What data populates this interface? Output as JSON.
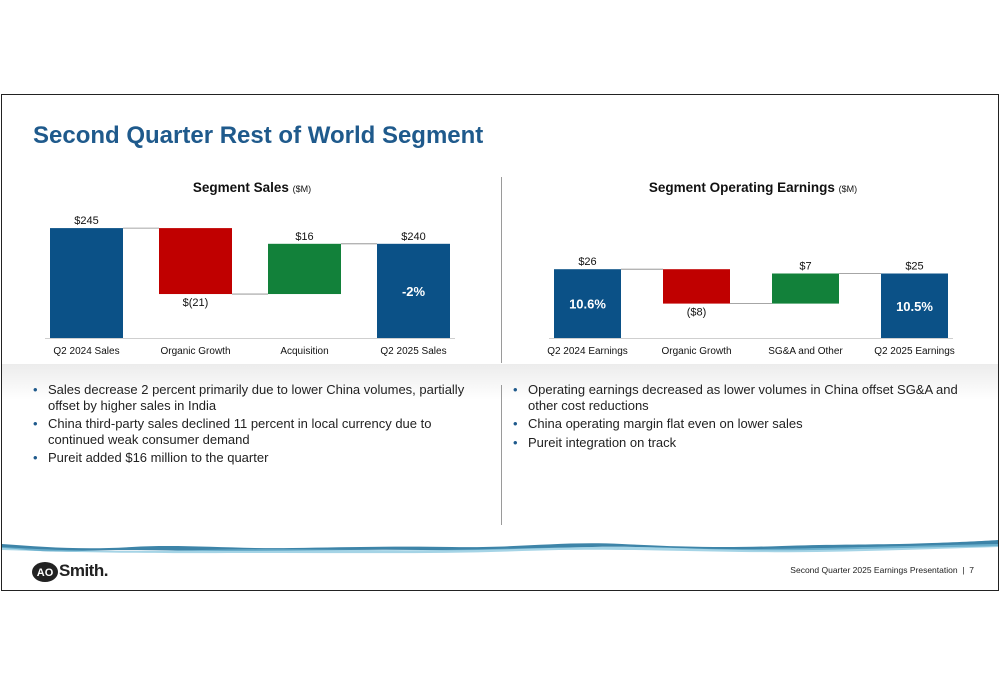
{
  "title": "Second Quarter Rest of World Segment",
  "colors": {
    "blue": "#0b5187",
    "red": "#c00000",
    "green": "#12813a",
    "title": "#1f5a8c"
  },
  "left_chart": {
    "heading": "Segment Sales",
    "unit": "($M)"
  },
  "right_chart": {
    "heading": "Segment Operating Earnings",
    "unit": "($M)"
  },
  "chart_data": [
    {
      "type": "bar",
      "subtype": "waterfall",
      "title": "Segment Sales ($M)",
      "categories": [
        "Q2 2024 Sales",
        "Organic Growth",
        "Acquisition",
        "Q2 2025 Sales"
      ],
      "values": [
        245,
        -21,
        16,
        240
      ],
      "kinds": [
        "total",
        "delta",
        "delta",
        "total"
      ],
      "value_labels": [
        "$245",
        "$(21)",
        "$16",
        "$240"
      ],
      "annotations": [
        "",
        "",
        "",
        "-2%"
      ]
    },
    {
      "type": "bar",
      "subtype": "waterfall",
      "title": "Segment Operating Earnings ($M)",
      "categories": [
        "Q2 2024 Earnings",
        "Organic Growth",
        "SG&A and Other",
        "Q2 2025 Earnings"
      ],
      "values": [
        26,
        -8,
        7,
        25
      ],
      "kinds": [
        "total",
        "delta",
        "delta",
        "total"
      ],
      "value_labels": [
        "$26",
        "($8)",
        "$7",
        "$25"
      ],
      "annotations": [
        "10.6%",
        "",
        "",
        "10.5%"
      ]
    }
  ],
  "bullets_left": [
    "Sales decrease 2 percent primarily due to lower China volumes, partially offset by higher sales in India",
    "China third-party sales declined 11 percent in local currency due to continued weak consumer demand",
    "Pureit added $16 million to the quarter"
  ],
  "bullets_right": [
    "Operating earnings decreased as lower volumes in China offset SG&A and other cost reductions",
    "China operating margin flat even on lower sales",
    "Pureit integration on track"
  ],
  "logo": {
    "text": "Smith.",
    "mark": "AO"
  },
  "footer": {
    "presentation": "Second Quarter 2025 Earnings Presentation",
    "separator": "|",
    "page": "7"
  }
}
